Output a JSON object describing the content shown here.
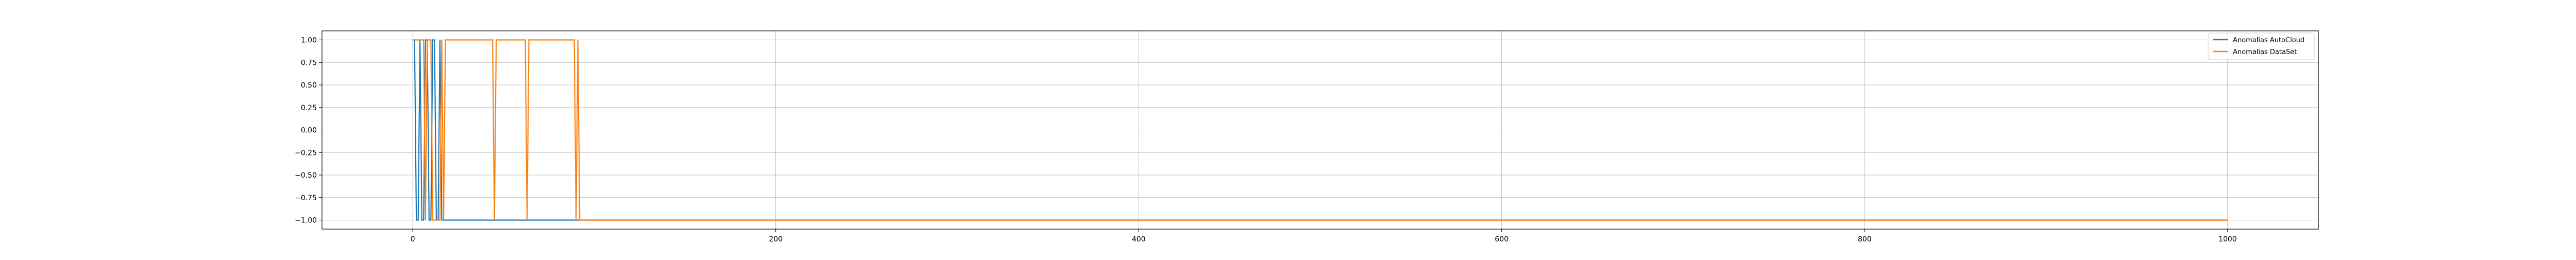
{
  "chart_data": {
    "type": "line",
    "title": "",
    "xlabel": "",
    "ylabel": "",
    "xlim": [
      -50,
      1050
    ],
    "ylim": [
      -1.1,
      1.1
    ],
    "x_ticks": [
      0,
      200,
      400,
      600,
      800,
      1000
    ],
    "x_tick_labels": [
      "0",
      "200",
      "400",
      "600",
      "800",
      "1000"
    ],
    "y_ticks": [
      1.0,
      0.75,
      0.5,
      0.25,
      0.0,
      -0.25,
      -0.5,
      -0.75,
      -1.0
    ],
    "y_tick_labels": [
      "1.00",
      "0.75",
      "0.50",
      "0.25",
      "0.00",
      "−0.25",
      "−0.50",
      "−0.75",
      "−1.00"
    ],
    "grid": true,
    "legend_position": "top-right",
    "series": [
      {
        "name": "Anomalias AutoCloud",
        "color": "#1f77b4",
        "points": [
          [
            0,
            1
          ],
          [
            1,
            1
          ],
          [
            2,
            -1
          ],
          [
            3,
            -1
          ],
          [
            4,
            1
          ],
          [
            5,
            -1
          ],
          [
            6,
            -1
          ],
          [
            7,
            1
          ],
          [
            8,
            1
          ],
          [
            9,
            -1
          ],
          [
            10,
            -1
          ],
          [
            11,
            1
          ],
          [
            12,
            1
          ],
          [
            13,
            -1
          ],
          [
            14,
            -1
          ],
          [
            15,
            1
          ],
          [
            16,
            -1
          ],
          [
            17,
            -1
          ],
          [
            1000,
            -1
          ]
        ]
      },
      {
        "name": "Anomalias DataSet",
        "color": "#ff7f0e",
        "points": [
          [
            0,
            1
          ],
          [
            6,
            1
          ],
          [
            7,
            -1
          ],
          [
            8,
            1
          ],
          [
            10,
            1
          ],
          [
            11,
            -1
          ],
          [
            15,
            -1
          ],
          [
            16,
            1
          ],
          [
            17,
            -1
          ],
          [
            18,
            1
          ],
          [
            44,
            1
          ],
          [
            45,
            -1
          ],
          [
            46,
            1
          ],
          [
            62,
            1
          ],
          [
            63,
            -1
          ],
          [
            64,
            1
          ],
          [
            89,
            1
          ],
          [
            90,
            -1
          ],
          [
            91,
            1
          ],
          [
            92,
            -1
          ],
          [
            1000,
            -1
          ]
        ]
      }
    ]
  }
}
